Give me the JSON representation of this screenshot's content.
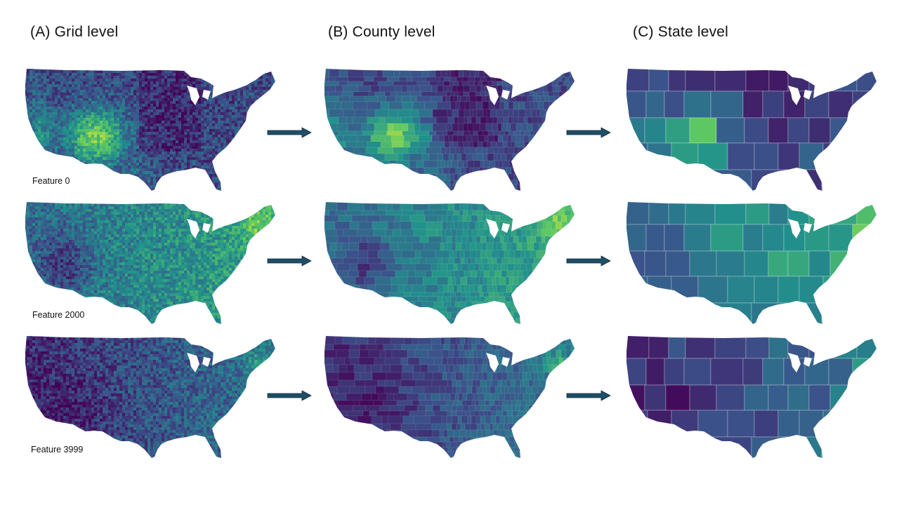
{
  "columns": [
    {
      "key": "grid",
      "title": "(A) Grid level"
    },
    {
      "key": "county",
      "title": "(B) County level"
    },
    {
      "key": "state",
      "title": "(C) State level"
    }
  ],
  "rows": [
    {
      "feature_label": "Feature 0",
      "profile": "feature0"
    },
    {
      "feature_label": "Feature 2000",
      "profile": "feature2000"
    },
    {
      "feature_label": "Feature 3999",
      "profile": "feature3999"
    }
  ],
  "colormap": [
    "#440154",
    "#3b528b",
    "#21918c",
    "#5ec962",
    "#fde725"
  ],
  "arrow_color": "#1f4e66",
  "map_subject": "contiguous-united-states"
}
